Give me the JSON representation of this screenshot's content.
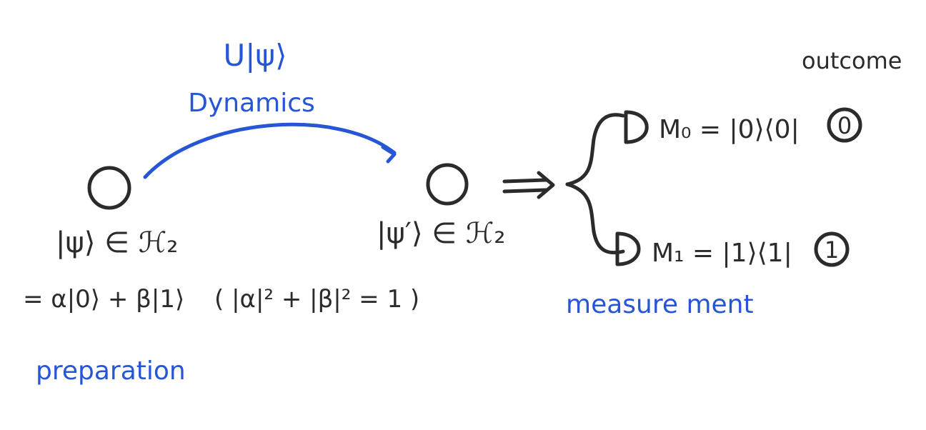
{
  "colors": {
    "ink": "#2b2b2b",
    "accent": "#2656d6",
    "background": "#ffffff"
  },
  "labels": {
    "unitary": "U|ψ⟩",
    "dynamics": "Dynamics",
    "initial_state": "|ψ⟩ ∈ ℋ₂",
    "superposition": "= α|0⟩ + β|1⟩",
    "normalization": "( |α|² + |β|² = 1 )",
    "preparation": "preparation",
    "evolved_state": "|ψ′⟩ ∈ ℋ₂",
    "outcome": "outcome",
    "projector_0": "M₀ = |0⟩⟨0|",
    "projector_1": "M₁ = |1⟩⟨1|",
    "outcome_0": "0",
    "outcome_1": "1",
    "measurement": "measure ment"
  },
  "icons": {
    "qubit": "qubit-circle-icon",
    "detector": "detector-icon",
    "implies_arrow": "double-arrow-icon",
    "dynamics_arrow": "curved-arrow-icon"
  }
}
